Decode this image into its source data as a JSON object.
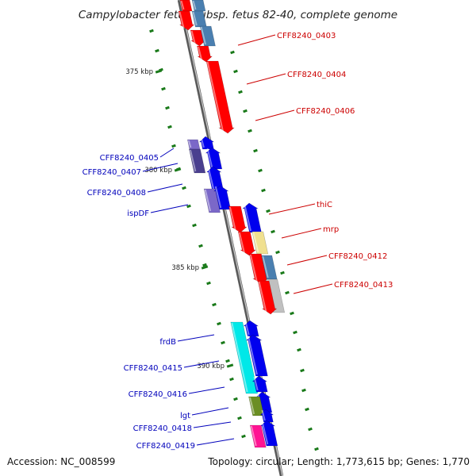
{
  "title": "Campylobacter fetus subsp. fetus 82-40, complete genome",
  "footer": {
    "accession": "Accession: NC_008599",
    "summary": "Topology: circular; Length: 1,773,615 bp; Genes: 1,770"
  },
  "colors": {
    "backbone": "#8c8c8c",
    "tick": "#1a7a1a",
    "forward_label": "#cc0000",
    "reverse_label": "#0000bb"
  },
  "kbp_ticks": [
    "375 kbp",
    "380 kbp",
    "385 kbp",
    "390 kbp"
  ],
  "forward_genes": [
    "CFF8240_0403",
    "CFF8240_0404",
    "CFF8240_0406",
    "thiC",
    "mrp",
    "CFF8240_0412",
    "CFF8240_0413"
  ],
  "reverse_genes": [
    "CFF8240_0405",
    "CFF8240_0407",
    "CFF8240_0408",
    "ispDF",
    "frdB",
    "CFF8240_0415",
    "CFF8240_0416",
    "lgt",
    "CFF8240_0418",
    "CFF8240_0419"
  ],
  "feature_colors": {
    "red": "#ff0000",
    "blue": "#0000ee",
    "steel": "#4a7fb0",
    "purple": "#7b68c8",
    "dark_purple": "#4a3f8f",
    "cyan": "#00e8e8",
    "khaki": "#f0e090",
    "grey": "#c0c0c0",
    "olive": "#6b8e23",
    "magenta": "#ff1493"
  }
}
